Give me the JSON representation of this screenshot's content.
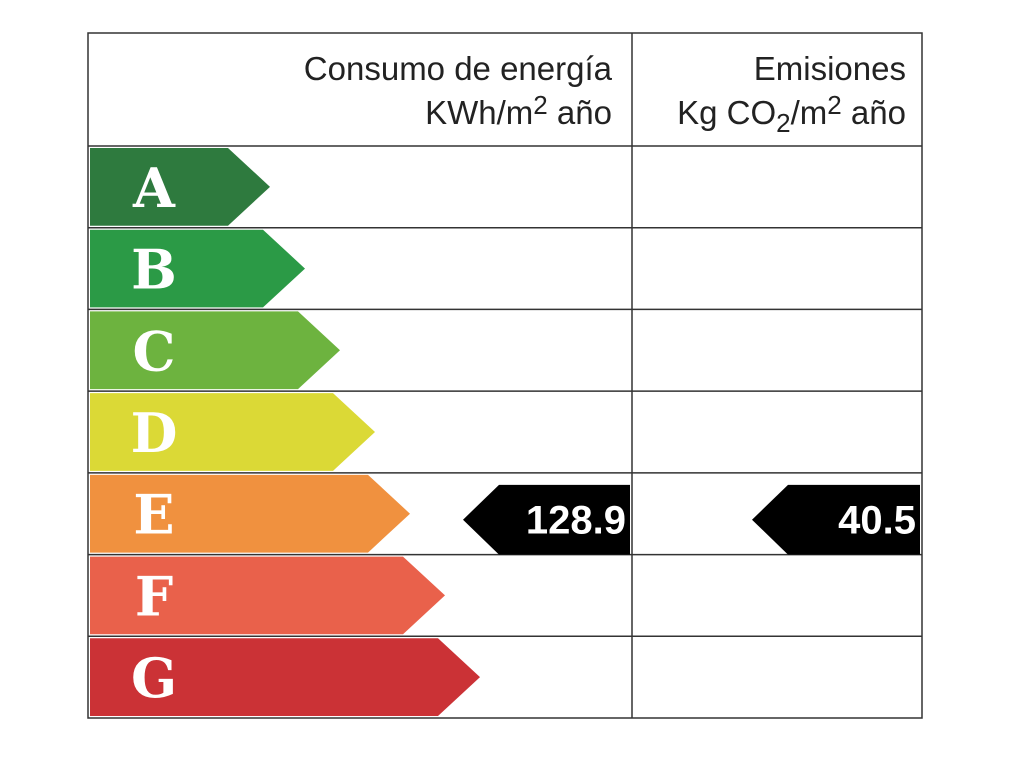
{
  "header": {
    "consumption": {
      "line1": "Consumo de energía",
      "line2": [
        "KWh/m",
        "2",
        " año"
      ]
    },
    "emissions": {
      "line1": "Emisiones",
      "line2": [
        "Kg CO",
        "2",
        "/m",
        "2",
        " año"
      ]
    }
  },
  "ratings": [
    {
      "letter": "A",
      "color": "#2e7a3e"
    },
    {
      "letter": "B",
      "color": "#2b9a46"
    },
    {
      "letter": "C",
      "color": "#6db33f"
    },
    {
      "letter": "D",
      "color": "#dbd936"
    },
    {
      "letter": "E",
      "color": "#f0913f"
    },
    {
      "letter": "F",
      "color": "#e9614b"
    },
    {
      "letter": "G",
      "color": "#cb3236"
    }
  ],
  "consumption": {
    "value": 128.9,
    "class": "E"
  },
  "emissions": {
    "value": 40.5,
    "class": "E"
  }
}
